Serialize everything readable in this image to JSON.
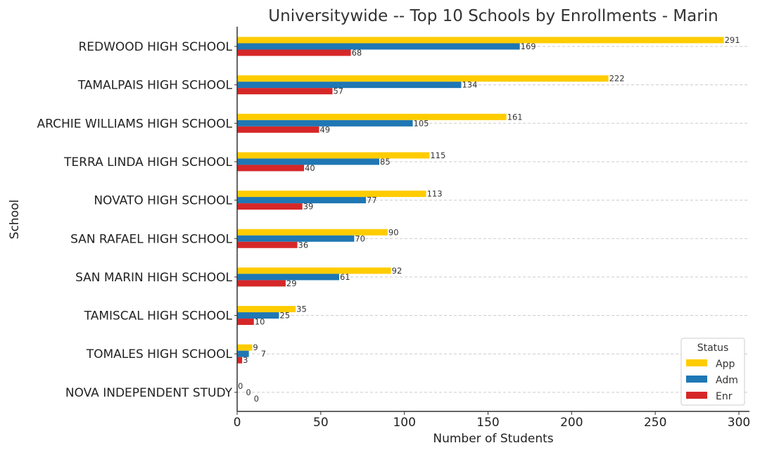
{
  "chart_data": {
    "type": "bar",
    "orientation": "horizontal",
    "title": "Universitywide -- Top 10 Schools by Enrollments - Marin",
    "xlabel": "Number of Students",
    "ylabel": "School",
    "xlim": [
      0,
      305
    ],
    "xticks": [
      0,
      50,
      100,
      150,
      200,
      250,
      300
    ],
    "grid": "y dashed",
    "legend": {
      "title": "Status",
      "placement": "lower-right"
    },
    "categories": [
      "REDWOOD HIGH SCHOOL",
      "TAMALPAIS HIGH SCHOOL",
      "ARCHIE WILLIAMS HIGH SCHOOL",
      "TERRA LINDA HIGH SCHOOL",
      "NOVATO HIGH SCHOOL",
      "SAN RAFAEL HIGH SCHOOL",
      "SAN MARIN HIGH SCHOOL",
      "TAMISCAL HIGH SCHOOL",
      "TOMALES HIGH SCHOOL",
      "NOVA INDEPENDENT STUDY"
    ],
    "series": [
      {
        "name": "App",
        "color": "#ffcc00",
        "values": [
          291,
          222,
          161,
          115,
          113,
          90,
          92,
          35,
          9,
          0
        ]
      },
      {
        "name": "Adm",
        "color": "#1f77b4",
        "values": [
          169,
          134,
          105,
          85,
          77,
          70,
          61,
          25,
          7,
          0
        ]
      },
      {
        "name": "Enr",
        "color": "#d62728",
        "values": [
          68,
          57,
          49,
          40,
          39,
          36,
          29,
          10,
          3,
          0
        ]
      }
    ]
  }
}
